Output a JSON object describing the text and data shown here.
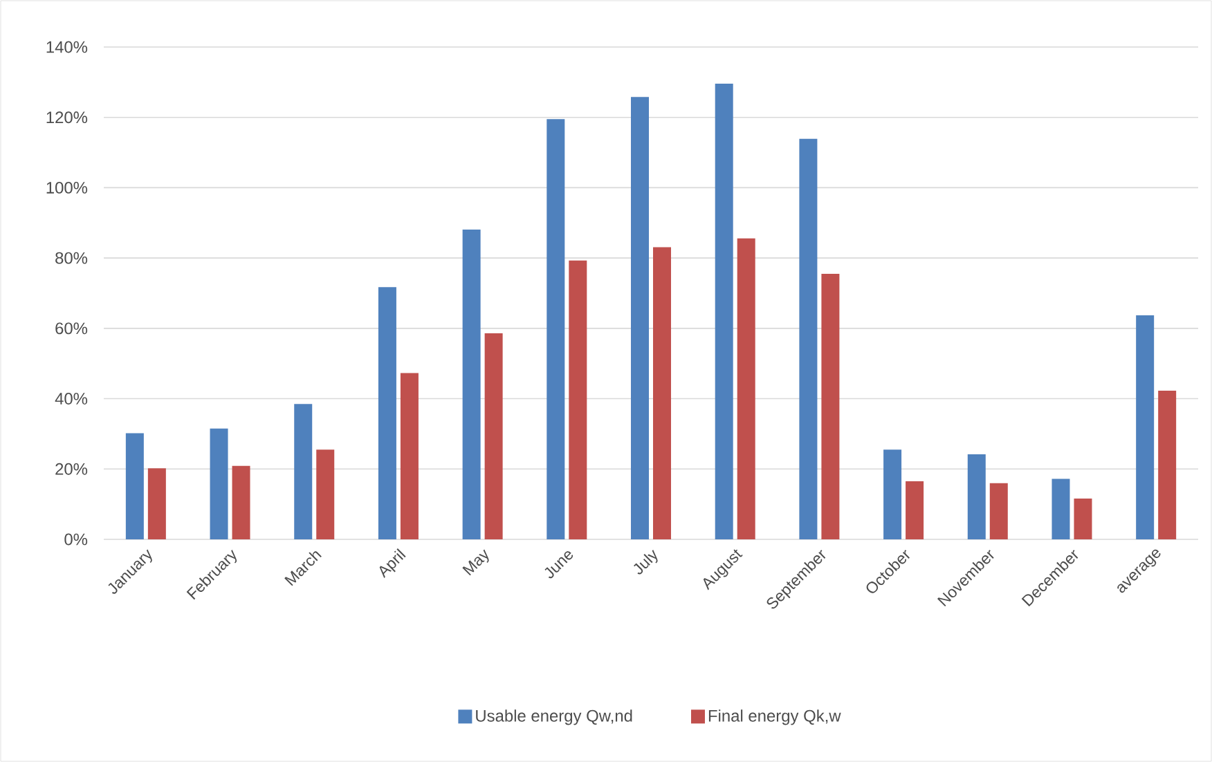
{
  "chart_data": {
    "type": "bar",
    "categories": [
      "January",
      "February",
      "March",
      "April",
      "May",
      "June",
      "July",
      "August",
      "September",
      "October",
      "November",
      "December",
      "average"
    ],
    "series": [
      {
        "name": "Usable energy Qw,nd",
        "color": "#4f81bd",
        "values": [
          30.2,
          31.5,
          38.5,
          71.7,
          88.1,
          119.5,
          125.8,
          129.6,
          113.9,
          25.5,
          24.2,
          17.2,
          63.7
        ]
      },
      {
        "name": "Final energy Qk,w",
        "color": "#c0504d",
        "values": [
          20.2,
          20.9,
          25.5,
          47.3,
          58.6,
          79.3,
          83.1,
          85.6,
          75.5,
          16.5,
          16.0,
          11.6,
          42.3
        ]
      }
    ],
    "ylim": [
      0,
      140
    ],
    "yticks": [
      {
        "value": 0,
        "label": "0%"
      },
      {
        "value": 20,
        "label": "20%"
      },
      {
        "value": 40,
        "label": "40%"
      },
      {
        "value": 60,
        "label": "60%"
      },
      {
        "value": 80,
        "label": "80%"
      },
      {
        "value": 100,
        "label": "100%"
      },
      {
        "value": 120,
        "label": "120%"
      },
      {
        "value": 140,
        "label": "140%"
      }
    ],
    "grid": "y",
    "legend": "bottom"
  }
}
